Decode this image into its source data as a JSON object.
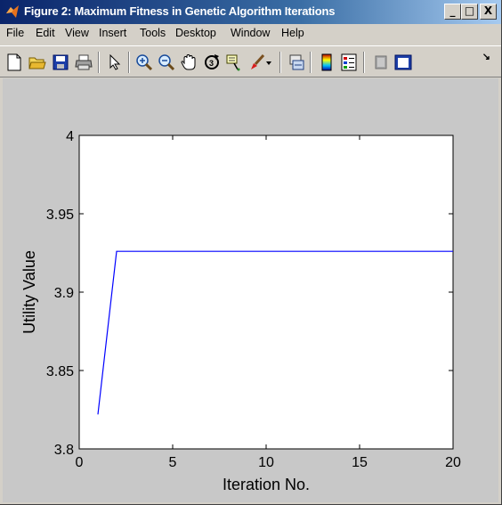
{
  "window": {
    "title": "Figure 2: Maximum Fitness in Genetic Algorithm Iterations",
    "controls": {
      "minimize": "_",
      "maximize": "□",
      "close": "X"
    }
  },
  "menubar": {
    "items": [
      "File",
      "Edit",
      "View",
      "Insert",
      "Tools",
      "Desktop",
      "Window",
      "Help"
    ],
    "dock_arrow": "↘"
  },
  "toolbar": {
    "buttons": [
      "new-figure-icon",
      "open-file-icon",
      "save-figure-icon",
      "print-figure-icon",
      "edit-plot-arrow-icon",
      "zoom-in-icon",
      "zoom-out-icon",
      "pan-hand-icon",
      "rotate-3d-icon",
      "data-cursor-icon",
      "brush-icon",
      "brush-dropdown-icon",
      "link-plot-icon",
      "insert-colorbar-icon",
      "insert-legend-icon",
      "hide-plot-tools-icon",
      "show-plot-tools-icon"
    ]
  },
  "chart_data": {
    "type": "line",
    "title": "",
    "xlabel": "Iteration No.",
    "ylabel": "Utility Value",
    "xlim": [
      0,
      20
    ],
    "ylim": [
      3.8,
      4
    ],
    "xticks": [
      0,
      5,
      10,
      15,
      20
    ],
    "yticks": [
      3.8,
      3.85,
      3.9,
      3.95,
      4
    ],
    "xtick_labels": [
      "0",
      "5",
      "10",
      "15",
      "20"
    ],
    "ytick_labels": [
      "3.8",
      "3.85",
      "3.9",
      "3.95",
      "4"
    ],
    "grid": false,
    "series": [
      {
        "color": "#0000ff",
        "x": [
          1,
          2,
          3,
          4,
          5,
          6,
          7,
          8,
          9,
          10,
          11,
          12,
          13,
          14,
          15,
          16,
          17,
          18,
          19,
          20
        ],
        "y": [
          3.822,
          3.926,
          3.926,
          3.926,
          3.926,
          3.926,
          3.926,
          3.926,
          3.926,
          3.926,
          3.926,
          3.926,
          3.926,
          3.926,
          3.926,
          3.926,
          3.926,
          3.926,
          3.926,
          3.926
        ]
      }
    ]
  }
}
